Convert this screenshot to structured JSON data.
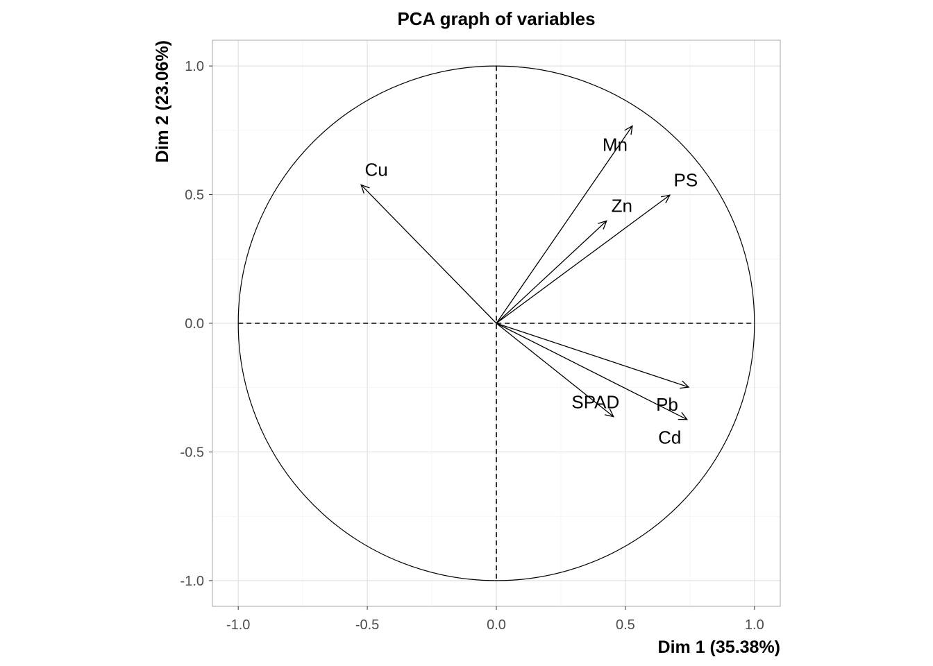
{
  "chart_data": {
    "type": "scatter",
    "subtype": "pca-correlation-circle",
    "title": "PCA graph of variables",
    "xlabel": "Dim 1 (35.38%)",
    "ylabel": "Dim 2 (23.06%)",
    "xlim": [
      -1.1,
      1.1
    ],
    "ylim": [
      -1.1,
      1.1
    ],
    "xticks": [
      -1.0,
      -0.5,
      0.0,
      0.5,
      1.0
    ],
    "yticks": [
      -1.0,
      -0.5,
      0.0,
      0.5,
      1.0
    ],
    "xtick_labels": [
      "-1.0",
      "-0.5",
      "0.0",
      "0.5",
      "1.0"
    ],
    "ytick_labels": [
      "-1.0",
      "-0.5",
      "0.0",
      "0.5",
      "1.0"
    ],
    "grid": true,
    "variables": [
      {
        "name": "Cu",
        "x": -0.524,
        "y": 0.538
      },
      {
        "name": "Mn",
        "x": 0.527,
        "y": 0.767
      },
      {
        "name": "PS",
        "x": 0.672,
        "y": 0.498
      },
      {
        "name": "Zn",
        "x": 0.427,
        "y": 0.398
      },
      {
        "name": "SPAD",
        "x": 0.454,
        "y": -0.363
      },
      {
        "name": "Pb",
        "x": 0.745,
        "y": -0.248
      },
      {
        "name": "Cd",
        "x": 0.739,
        "y": -0.374
      }
    ]
  }
}
